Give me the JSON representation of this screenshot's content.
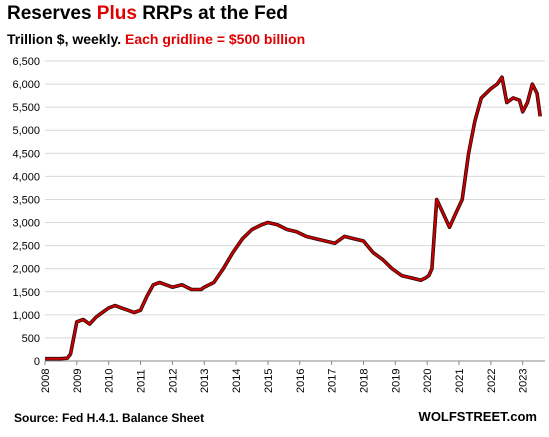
{
  "header": {
    "title_part1": "Reserves ",
    "title_part2": "Plus",
    "title_part3": "  RRPs at the Fed",
    "subtitle_part1": "Trillion $, weekly. ",
    "subtitle_part2": "Each gridline = $500 billion"
  },
  "footer": {
    "source": "Source: Fed H.4.1. Balance Sheet",
    "brand": "WOLFSTREET.com"
  },
  "colors": {
    "line": "#cc0000",
    "line_shadow": "#2a0a0a",
    "grid": "#d9d9d9",
    "accent": "#e00000"
  },
  "chart_data": {
    "type": "line",
    "title": "Reserves Plus RRPs at the Fed",
    "subtitle": "Trillion $, weekly. Each gridline = $500 billion",
    "xlabel": "",
    "ylabel": "",
    "xlim": [
      2008,
      2023.7
    ],
    "ylim": [
      0,
      6500
    ],
    "grid": true,
    "x_ticks": [
      "2008",
      "2009",
      "2010",
      "2011",
      "2012",
      "2013",
      "2014",
      "2015",
      "2016",
      "2017",
      "2018",
      "2019",
      "2020",
      "2021",
      "2022",
      "2023"
    ],
    "y_ticks": [
      "0",
      "500",
      "1,000",
      "1,500",
      "2,000",
      "2,500",
      "3,000",
      "3,500",
      "4,000",
      "4,500",
      "5,000",
      "5,500",
      "6,000",
      "6,500"
    ],
    "series": [
      {
        "name": "",
        "x": [
          2008.0,
          2008.5,
          2008.7,
          2008.8,
          2008.9,
          2009.0,
          2009.2,
          2009.4,
          2009.6,
          2009.8,
          2010.0,
          2010.2,
          2010.4,
          2010.6,
          2010.8,
          2011.0,
          2011.2,
          2011.4,
          2011.6,
          2011.8,
          2012.0,
          2012.3,
          2012.6,
          2012.9,
          2013.0,
          2013.3,
          2013.6,
          2013.9,
          2014.2,
          2014.5,
          2014.8,
          2015.0,
          2015.3,
          2015.6,
          2015.9,
          2016.2,
          2016.5,
          2016.8,
          2017.1,
          2017.4,
          2017.7,
          2018.0,
          2018.3,
          2018.6,
          2018.9,
          2019.2,
          2019.5,
          2019.8,
          2019.95,
          2020.05,
          2020.15,
          2020.3,
          2020.5,
          2020.7,
          2020.9,
          2021.1,
          2021.3,
          2021.5,
          2021.7,
          2021.85,
          2022.0,
          2022.2,
          2022.35,
          2022.5,
          2022.7,
          2022.9,
          2023.0,
          2023.15,
          2023.3,
          2023.45,
          2023.55
        ],
        "y": [
          50,
          50,
          60,
          150,
          500,
          850,
          900,
          800,
          950,
          1050,
          1150,
          1200,
          1150,
          1100,
          1050,
          1100,
          1400,
          1650,
          1700,
          1650,
          1600,
          1650,
          1550,
          1550,
          1600,
          1700,
          2000,
          2350,
          2650,
          2850,
          2950,
          3000,
          2950,
          2850,
          2800,
          2700,
          2650,
          2600,
          2550,
          2700,
          2650,
          2600,
          2350,
          2200,
          2000,
          1850,
          1800,
          1750,
          1800,
          1850,
          2000,
          3500,
          3200,
          2900,
          3200,
          3500,
          4500,
          5200,
          5700,
          5800,
          5900,
          6000,
          6150,
          5600,
          5700,
          5650,
          5400,
          5600,
          6000,
          5800,
          5300
        ]
      }
    ]
  }
}
